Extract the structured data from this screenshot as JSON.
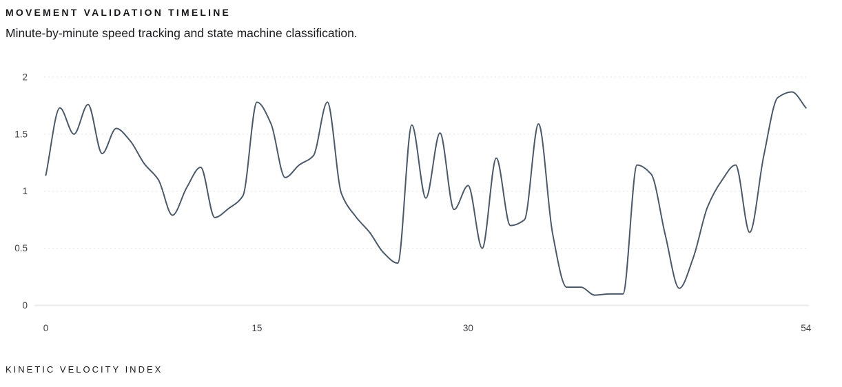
{
  "header": {
    "title": "MOVEMENT VALIDATION TIMELINE",
    "subtitle": "Minute-by-minute speed tracking and state machine classification."
  },
  "footer": {
    "label": "KINETIC VELOCITY INDEX"
  },
  "chart_data": {
    "type": "line",
    "title": "MOVEMENT VALIDATION TIMELINE",
    "subtitle": "Minute-by-minute speed tracking and state machine classification.",
    "series_label": "KINETIC VELOCITY INDEX",
    "x": [
      0,
      1,
      2,
      3,
      4,
      5,
      6,
      7,
      8,
      9,
      10,
      11,
      12,
      13,
      14,
      15,
      16,
      17,
      18,
      19,
      20,
      21,
      22,
      23,
      24,
      25,
      26,
      27,
      28,
      29,
      30,
      31,
      32,
      33,
      34,
      35,
      36,
      37,
      38,
      39,
      40,
      41,
      42,
      43,
      44,
      45,
      46,
      47,
      48,
      49,
      50,
      51,
      52,
      53,
      54
    ],
    "values": [
      1.14,
      1.73,
      1.5,
      1.76,
      1.33,
      1.55,
      1.44,
      1.24,
      1.1,
      0.79,
      1.03,
      1.21,
      0.77,
      0.85,
      0.96,
      1.78,
      1.59,
      1.12,
      1.23,
      1.31,
      1.78,
      0.98,
      0.78,
      0.64,
      0.46,
      0.37,
      1.58,
      0.94,
      1.51,
      0.84,
      1.05,
      0.5,
      1.29,
      0.7,
      0.75,
      1.59,
      0.63,
      0.16,
      0.16,
      0.09,
      0.1,
      0.1,
      1.23,
      1.15,
      0.62,
      0.15,
      0.42,
      0.86,
      1.09,
      1.23,
      0.64,
      1.31,
      1.82,
      1.87,
      1.73
    ],
    "xticks": [
      0,
      15,
      30,
      54
    ],
    "yticks": [
      0,
      0.5,
      1,
      1.5,
      2
    ],
    "xlim": [
      0,
      54
    ],
    "ylim": [
      0,
      2
    ],
    "grid": "horizontal-dotted",
    "legend": "none",
    "curve": "monotone",
    "line_color": "#4b5969",
    "grid_color": "#e4e4e7",
    "axis_color": "#e9e9ec",
    "tick_color": "#3f3f46"
  }
}
